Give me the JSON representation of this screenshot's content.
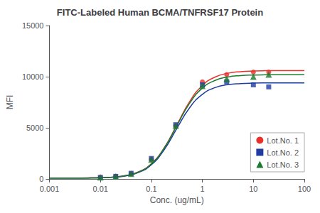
{
  "chart_data": {
    "type": "scatter",
    "title": "FITC-Labeled Human BCMA/TNFRSF17 Protein",
    "xlabel": "Conc. (ug/mL)",
    "ylabel": "MFI",
    "log": "x",
    "xlim": [
      0.001,
      100
    ],
    "ylim": [
      0,
      15000
    ],
    "xticks": [
      0.001,
      0.01,
      0.1,
      1,
      10,
      100
    ],
    "yticks": [
      0,
      5000,
      10000,
      15000
    ],
    "grid": false,
    "legend": "lower right",
    "fit_x": [
      0.001,
      0.001778279,
      0.003162278,
      0.005623413,
      0.01,
      0.01778279,
      0.03162278,
      0.05623413,
      0.1,
      0.1778279,
      0.3162278,
      0.5623413,
      1,
      1.778279,
      3.162278,
      5.623413,
      10,
      17.78279,
      31.62278,
      56.23413,
      100
    ],
    "series": [
      {
        "name": "Lot.No. 1",
        "color": "#e8312a",
        "marker": "circle",
        "x": [
          0.01,
          0.02,
          0.04,
          0.1,
          0.3,
          1.0,
          3.0,
          10.0,
          20.0
        ],
        "values": [
          150,
          250,
          500,
          1900,
          5200,
          9500,
          10200,
          10450,
          10450
        ],
        "fit_values": [
          81.0,
          82.6,
          86.5,
          96.3,
          120.9,
          182.2,
          333.0,
          693.3,
          1495.8,
          3034.7,
          5290.1,
          7563.6,
          9137.1,
          9964.4,
          10337.4,
          10493.9,
          10557.5,
          10583.0,
          10593.2,
          10597.3,
          10598.9
        ]
      },
      {
        "name": "Lot.No. 2",
        "color": "#1f3da0",
        "marker": "square",
        "x": [
          0.01,
          0.02,
          0.04,
          0.1,
          0.3,
          1.0,
          3.0,
          10.0,
          20.0
        ],
        "values": [
          150,
          250,
          550,
          2000,
          5300,
          9200,
          9500,
          9200,
          9000
        ],
        "fit_values": [
          80.8,
          82.0,
          85.1,
          93.2,
          113.9,
          167.2,
          302.2,
          633.4,
          1387.7,
          2845.7,
          4942.4,
          6960.2,
          8275.9,
          8930.8,
          9212.6,
          9326.6,
          9371.5,
          9388.9,
          9395.7,
          9398.3,
          9399.4
        ]
      },
      {
        "name": "Lot.No. 3",
        "color": "#1a7a2e",
        "marker": "triangle",
        "x": [
          0.01,
          0.02,
          0.04,
          0.1,
          0.3,
          1.0,
          3.0,
          10.0,
          20.0
        ],
        "values": [
          150,
          250,
          500,
          1900,
          5200,
          9100,
          9800,
          10000,
          10200
        ],
        "fit_values": [
          80.9,
          82.4,
          86.0,
          95.3,
          118.7,
          177.7,
          324.6,
          679.3,
          1475.5,
          3004.6,
          5221.5,
          7407.6,
          8880.2,
          9635.9,
          9970.3,
          10108.3,
          10163.7,
          10185.7,
          10194.4,
          10197.8,
          10199.1
        ]
      }
    ]
  }
}
